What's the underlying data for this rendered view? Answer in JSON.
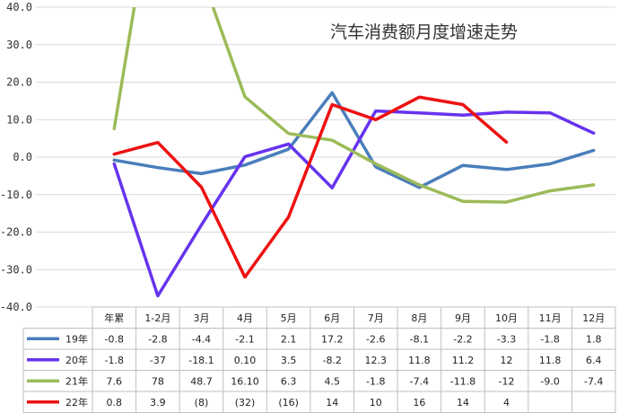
{
  "chart_data": {
    "type": "line",
    "title": "汽车消费额月度增速走势",
    "categories": [
      "年累",
      "1-2月",
      "3月",
      "4月",
      "5月",
      "6月",
      "7月",
      "8月",
      "9月",
      "10月",
      "11月",
      "12月"
    ],
    "ylim": [
      -40,
      40
    ],
    "yticks": [
      40,
      30,
      20,
      10,
      0,
      -10,
      -20,
      -30,
      -40
    ],
    "ytick_labels": [
      "40.0",
      "30.0",
      "20.0",
      "10.0",
      "0.0",
      "-10.0",
      "-20.0",
      "-30.0",
      "-40.0"
    ],
    "grid": true,
    "legend": "data-table",
    "series": [
      {
        "name": "19年",
        "color": "#4a7ebb",
        "values": [
          -0.8,
          -2.8,
          -4.4,
          -2.1,
          2.1,
          17.2,
          -2.6,
          -8.1,
          -2.2,
          -3.3,
          -1.8,
          1.8
        ],
        "labels": [
          "-0.8",
          "-2.8",
          "-4.4",
          "-2.1",
          "2.1",
          "17.2",
          "-2.6",
          "-8.1",
          "-2.2",
          "-3.3",
          "-1.8",
          "1.8"
        ]
      },
      {
        "name": "20年",
        "color": "#6633ee",
        "values": [
          -1.8,
          -37,
          -18.1,
          0.1,
          3.5,
          -8.2,
          12.3,
          11.8,
          11.2,
          12,
          11.8,
          6.4
        ],
        "labels": [
          "-1.8",
          "-37",
          "-18.1",
          "0.10",
          "3.5",
          "-8.2",
          "12.3",
          "11.8",
          "11.2",
          "12",
          "11.8",
          "6.4"
        ]
      },
      {
        "name": "21年",
        "color": "#9bbb59",
        "values": [
          7.6,
          78,
          48.7,
          16.1,
          6.3,
          4.5,
          -1.8,
          -7.4,
          -11.8,
          -12,
          -9.0,
          -7.4
        ],
        "labels": [
          "7.6",
          "78",
          "48.7",
          "16.10",
          "6.3",
          "4.5",
          "-1.8",
          "-7.4",
          "-11.8",
          "-12",
          "-9.0",
          "-7.4"
        ]
      },
      {
        "name": "22年",
        "color": "#ee1111",
        "values": [
          0.8,
          3.9,
          -8,
          -32,
          -16,
          14,
          10,
          16,
          14,
          4,
          null,
          null
        ],
        "labels": [
          "0.8",
          "3.9",
          "(8)",
          "(32)",
          "(16)",
          "14",
          "10",
          "16",
          "14",
          "4",
          "",
          ""
        ]
      }
    ]
  }
}
